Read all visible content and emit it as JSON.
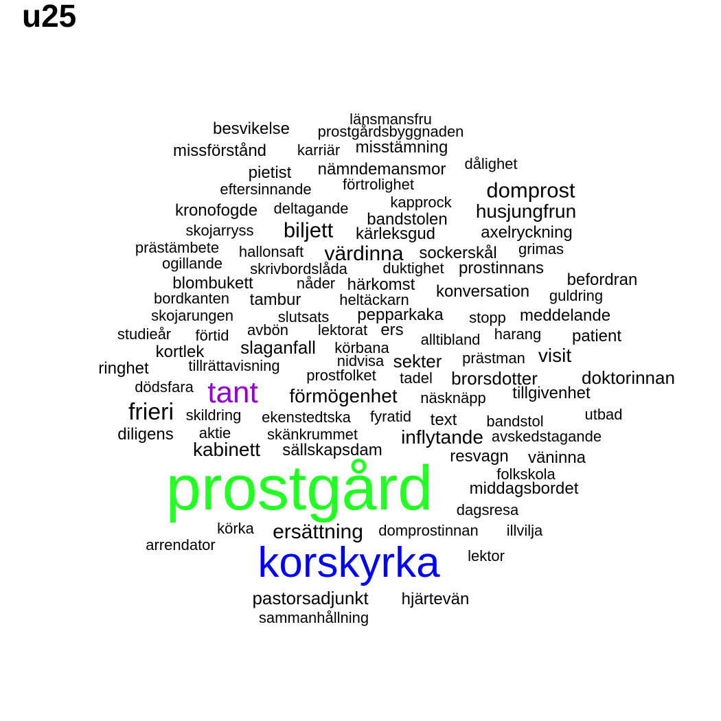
{
  "title": "u25",
  "colors": {
    "default": "#000000",
    "prostgård": "#22ff22",
    "korskyrka": "#0000ff",
    "tant": "#9400d3"
  },
  "words": [
    "länsmansfru",
    "besvikelse",
    "prostgårdsbyggnaden",
    "missförstånd",
    "karriär",
    "misstämning",
    "pietist",
    "nämndemansmor",
    "dålighet",
    "eftersinnande",
    "förtrolighet",
    "domprost",
    "kronofogde",
    "deltagande",
    "kapprock",
    "husjungfrun",
    "bandstolen",
    "skojarryss",
    "biljett",
    "kärleksgud",
    "axelryckning",
    "prästämbete",
    "hallonsaft",
    "värdinna",
    "sockerskål",
    "grimas",
    "ogillande",
    "skrivbordslåda",
    "duktighet",
    "prostinnans",
    "befordran",
    "blombukett",
    "nåder",
    "härkomst",
    "konversation",
    "bordkanten",
    "tambur",
    "heltäckarn",
    "guldring",
    "skojarungen",
    "slutsats",
    "pepparkaka",
    "stopp",
    "meddelande",
    "studieår",
    "avbön",
    "lektorat",
    "ers",
    "förtid",
    "harang",
    "alltibland",
    "patient",
    "slaganfall",
    "körbana",
    "kortlek",
    "visit",
    "nidvisa",
    "sekter",
    "prästman",
    "ringhet",
    "tillrättavisning",
    "prostfolket",
    "tadel",
    "brorsdotter",
    "doktorinnan",
    "dödsfara",
    "tant",
    "förmögenhet",
    "näsknäpp",
    "tillgivenhet",
    "frieri",
    "skildring",
    "ekenstedtska",
    "fyratid",
    "text",
    "bandstol",
    "utbad",
    "diligens",
    "aktie",
    "skänkrummet",
    "inflytande",
    "avskedstagande",
    "kabinett",
    "sällskapsdam",
    "resvagn",
    "väninna",
    "prostgård",
    "folkskola",
    "middagsbordet",
    "dagsresa",
    "körka",
    "ersättning",
    "domprostinnan",
    "illvilja",
    "arrendator",
    "korskyrka",
    "lektor",
    "pastorsadjunkt",
    "hjärtevän",
    "sammanhållning"
  ]
}
